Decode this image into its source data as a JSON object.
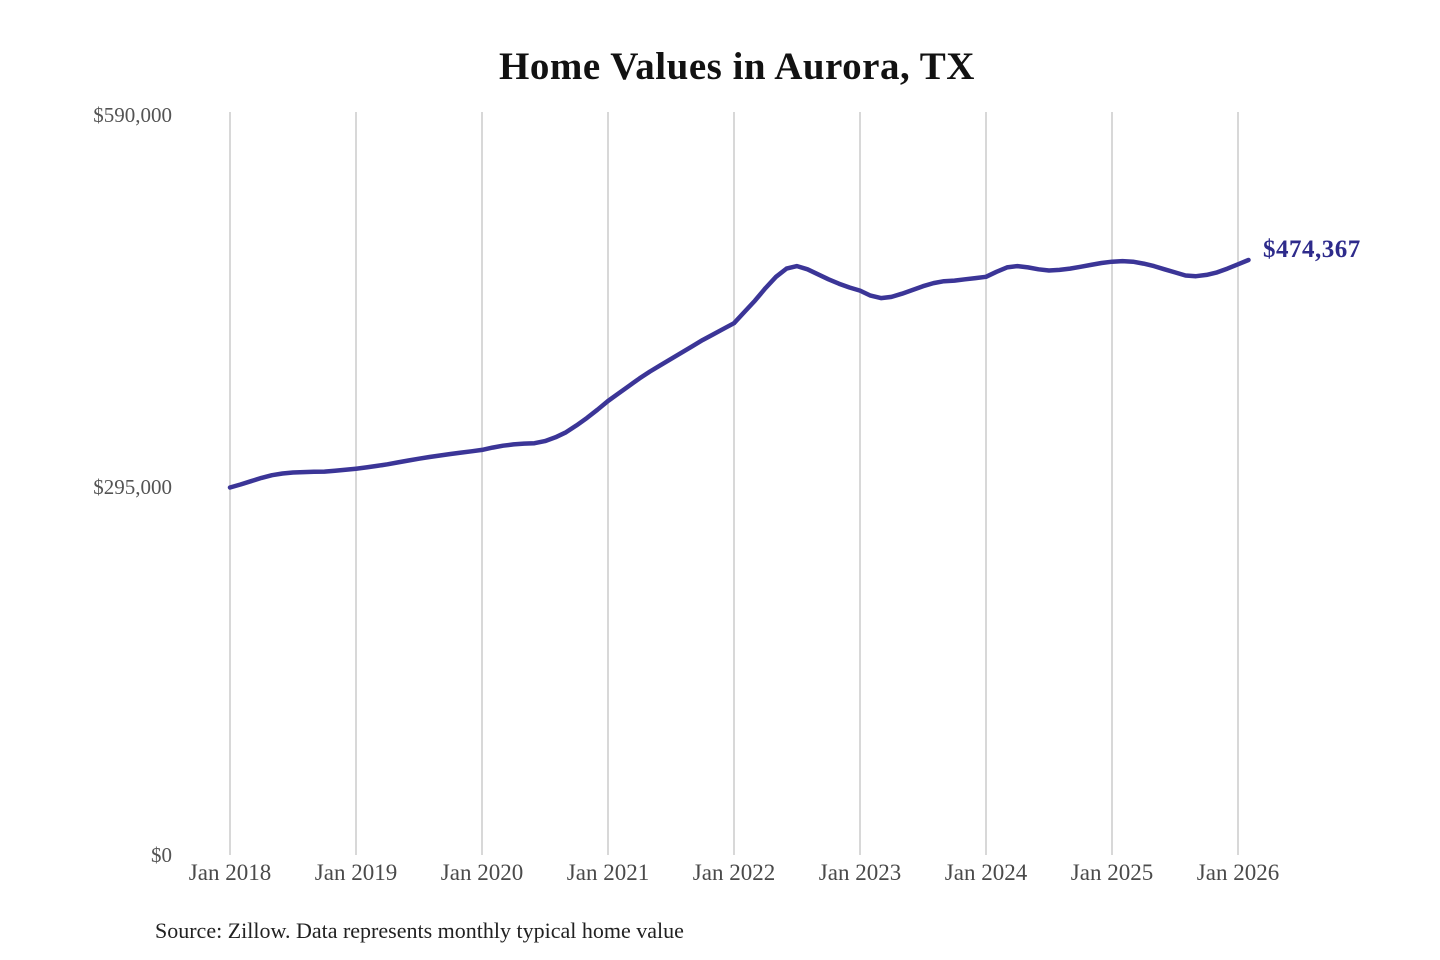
{
  "title": "Home Values in Aurora, TX",
  "source_note": "Source: Zillow. Data represents monthly typical home value",
  "end_label": "$474,367",
  "colors": {
    "line": "#3b3597",
    "end_label": "#2e2b8b",
    "grid": "#cbcbcb",
    "axis_text": "#545454",
    "title_text": "#121212",
    "source_text": "#212121",
    "background": "#ffffff"
  },
  "y_ticks": [
    "$590,000",
    "$295,000",
    "$0"
  ],
  "x_ticks": [
    "Jan 2018",
    "Jan 2019",
    "Jan 2020",
    "Jan 2021",
    "Jan 2022",
    "Jan 2023",
    "Jan 2024",
    "Jan 2025",
    "Jan 2026"
  ],
  "chart_data": {
    "type": "line",
    "title": "Home Values in Aurora, TX",
    "xlabel": "",
    "ylabel": "",
    "ylim": [
      0,
      590000
    ],
    "y_tick_labels": [
      "$0",
      "$295,000",
      "$590,000"
    ],
    "x_tick_labels": [
      "Jan 2018",
      "Jan 2019",
      "Jan 2020",
      "Jan 2021",
      "Jan 2022",
      "Jan 2023",
      "Jan 2024",
      "Jan 2025",
      "Jan 2026"
    ],
    "grid": "vertical-only",
    "legend": "none",
    "x_start": "2018-01",
    "x_end": "2026-02",
    "x_interval": "month",
    "n_points": 98,
    "final_value": 474367,
    "final_value_label": "$474,367",
    "series": [
      {
        "name": "Monthly typical home value",
        "values": [
          293000,
          295400,
          298000,
          300700,
          302800,
          304200,
          305000,
          305300,
          305500,
          305700,
          306300,
          307100,
          308000,
          309000,
          310200,
          311500,
          313000,
          314500,
          316000,
          317300,
          318500,
          319700,
          320800,
          321900,
          323000,
          324800,
          326300,
          327400,
          328000,
          328300,
          330000,
          333000,
          337000,
          342500,
          348500,
          355000,
          362000,
          368000,
          374000,
          380000,
          385500,
          390500,
          395500,
          400500,
          405500,
          410500,
          415000,
          419500,
          424000,
          433000,
          442000,
          452000,
          461000,
          467500,
          469500,
          467000,
          463000,
          459000,
          455500,
          452500,
          450000,
          446000,
          444000,
          445000,
          447500,
          450500,
          453500,
          456000,
          457500,
          458000,
          459000,
          460000,
          461000,
          465000,
          468500,
          469500,
          468500,
          467000,
          466000,
          466500,
          467500,
          469000,
          470500,
          472000,
          473000,
          473500,
          473000,
          471500,
          469500,
          467000,
          464500,
          462000,
          461500,
          462500,
          464500,
          467500,
          471000,
          474367
        ]
      }
    ],
    "source": "Source: Zillow. Data represents monthly typical home value"
  }
}
